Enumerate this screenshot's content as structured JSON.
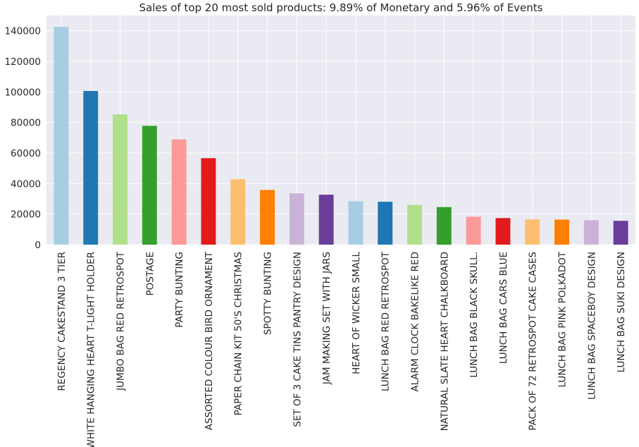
{
  "chart_data": {
    "type": "bar",
    "title": "Sales of top 20 most sold products: 9.89% of Monetary and 5.96% of Events",
    "xlabel": "",
    "ylabel": "",
    "ylim": [
      0,
      150000
    ],
    "yticks": [
      0,
      20000,
      40000,
      60000,
      80000,
      100000,
      120000,
      140000
    ],
    "ytick_labels": [
      "0",
      "20000",
      "40000",
      "60000",
      "80000",
      "100000",
      "120000",
      "140000"
    ],
    "grid": true,
    "categories": [
      "REGENCY CAKESTAND 3 TIER",
      "WHITE HANGING HEART T-LIGHT HOLDER",
      "JUMBO BAG RED RETROSPOT",
      "POSTAGE",
      "PARTY BUNTING",
      "ASSORTED COLOUR BIRD ORNAMENT",
      "PAPER CHAIN KIT 50'S CHRISTMAS",
      "SPOTTY BUNTING",
      "SET OF 3 CAKE TINS PANTRY DESIGN",
      "JAM MAKING SET WITH JARS",
      "HEART OF WICKER SMALL",
      "LUNCH BAG RED RETROSPOT",
      "ALARM CLOCK BAKELIKE RED",
      "NATURAL SLATE HEART CHALKBOARD",
      "LUNCH BAG  BLACK SKULL.",
      "LUNCH BAG CARS BLUE",
      "PACK OF 72 RETROSPOT CAKE CASES",
      "LUNCH BAG PINK POLKADOT",
      "LUNCH BAG SPACEBOY DESIGN",
      "LUNCH BAG SUKI DESIGN"
    ],
    "values": [
      142600,
      100600,
      85200,
      77800,
      68900,
      56600,
      42800,
      35800,
      33600,
      32700,
      28400,
      28100,
      26000,
      24600,
      18300,
      17400,
      16500,
      16400,
      16000,
      15600
    ],
    "colors": [
      "#a6cee3",
      "#1f78b4",
      "#b2df8a",
      "#33a02c",
      "#fb9a99",
      "#e31a1c",
      "#fdbf6f",
      "#ff7f00",
      "#cab2d6",
      "#6a3d9a",
      "#a6cee3",
      "#1f78b4",
      "#b2df8a",
      "#33a02c",
      "#fb9a99",
      "#e31a1c",
      "#fdbf6f",
      "#ff7f00",
      "#cab2d6",
      "#6a3d9a"
    ],
    "background_color": "#eaeaf2",
    "grid_color": "#ffffff"
  }
}
